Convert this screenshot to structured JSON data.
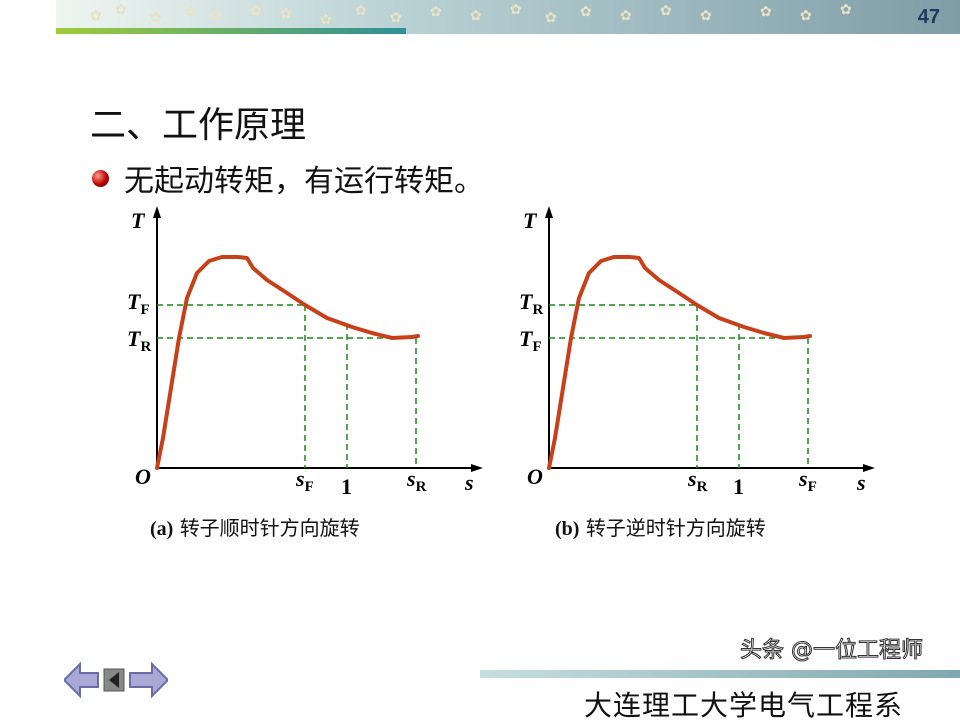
{
  "header": {
    "page_number": "47"
  },
  "title": "二、工作原理",
  "bullet": "无起动转矩，有运行转矩。",
  "colors": {
    "curve": "#c8401a",
    "guide": "#1a8a1a",
    "axis": "#000000"
  },
  "diagrams": [
    {
      "y_axis": "T",
      "x_axis": "s",
      "origin": "O",
      "upper_level": {
        "main": "T",
        "sub": "F"
      },
      "lower_level": {
        "main": "T",
        "sub": "R"
      },
      "x_marks": [
        {
          "main": "s",
          "sub": "F"
        },
        {
          "main": "1",
          "sub": ""
        },
        {
          "main": "s",
          "sub": "R"
        }
      ],
      "caption_prefix": "(a)",
      "caption": "转子顺时针方向旋转"
    },
    {
      "y_axis": "T",
      "x_axis": "s",
      "origin": "O",
      "upper_level": {
        "main": "T",
        "sub": "R"
      },
      "lower_level": {
        "main": "T",
        "sub": "F"
      },
      "x_marks": [
        {
          "main": "s",
          "sub": "R"
        },
        {
          "main": "1",
          "sub": ""
        },
        {
          "main": "s",
          "sub": "F"
        }
      ],
      "caption_prefix": "(b)",
      "caption": "转子逆时针方向旋转"
    }
  ],
  "nav": {
    "icons": [
      "arrow-left-icon",
      "first-page-icon",
      "arrow-right-icon"
    ]
  },
  "footer": {
    "institution": "大连理工大学电气工程系",
    "watermark": "头条 @一位工程师"
  }
}
